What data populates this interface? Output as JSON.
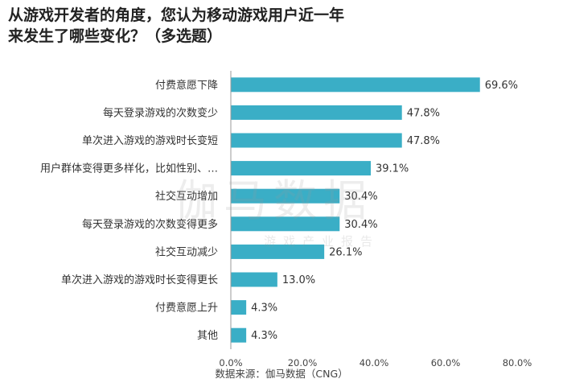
{
  "chart_data": {
    "type": "bar",
    "orientation": "horizontal",
    "title_lines": [
      "从游戏开发者的角度，您认为移动游戏用户近一年",
      "来发生了哪些变化？（多选题）"
    ],
    "categories": [
      "付费意愿下降",
      "每天登录游戏的次数变少",
      "单次进入游戏的游戏时长变短",
      "用户群体变得更多样化，比如性别、…",
      "社交互动增加",
      "每天登录游戏的次数变得更多",
      "社交互动减少",
      "单次进入游戏的游戏时长变得更长",
      "付费意愿上升",
      "其他"
    ],
    "values": [
      69.6,
      47.8,
      47.8,
      39.1,
      30.4,
      30.4,
      26.1,
      13.0,
      4.3,
      4.3
    ],
    "value_labels": [
      "69.6%",
      "47.8%",
      "47.8%",
      "39.1%",
      "30.4%",
      "30.4%",
      "26.1%",
      "13.0%",
      "4.3%",
      "4.3%"
    ],
    "xlim": [
      0,
      80
    ],
    "xticks": [
      "0.0%",
      "20.0%",
      "40.0%",
      "60.0%",
      "80.0%"
    ],
    "bar_color": "#3aaec6",
    "grid": false,
    "source": "数据来源：伽马数据（CNG）",
    "watermark": {
      "main": "伽马数据",
      "sub": "游戏产业报告"
    }
  }
}
